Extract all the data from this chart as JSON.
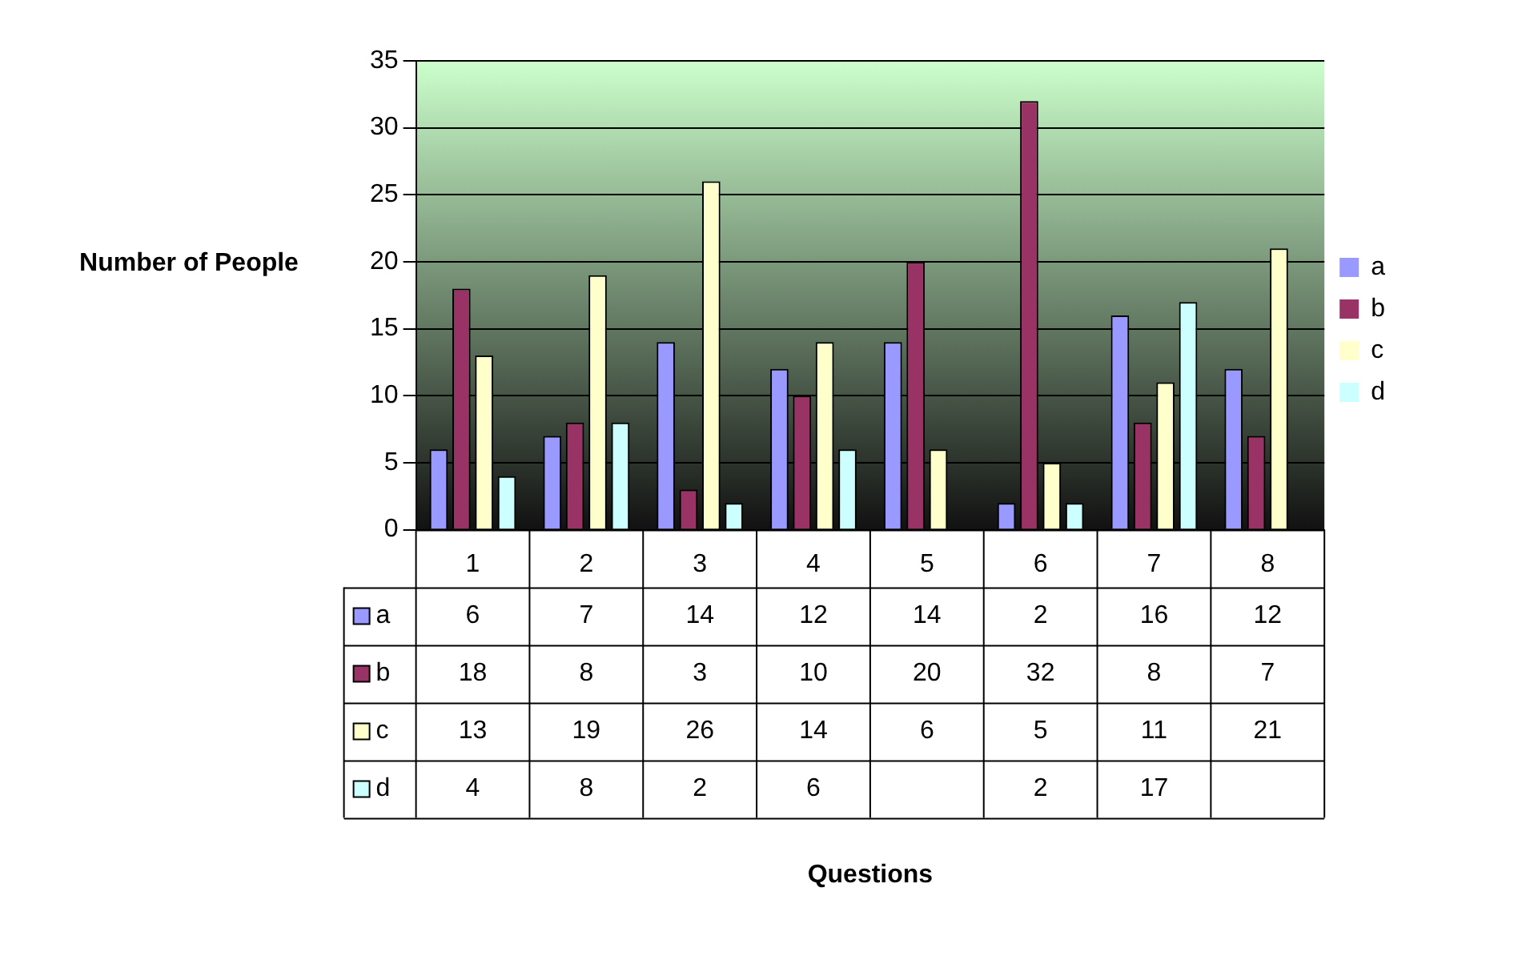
{
  "chart_data": {
    "type": "bar",
    "annotations": [
      "Questions"
    ],
    "ylabel": "Number of People",
    "categories": [
      "1",
      "2",
      "3",
      "4",
      "5",
      "6",
      "7",
      "8"
    ],
    "series": [
      {
        "name": "a",
        "color": "#9999ff",
        "values": [
          6,
          7,
          14,
          12,
          14,
          2,
          16,
          12
        ]
      },
      {
        "name": "b",
        "color": "#993366",
        "values": [
          18,
          8,
          3,
          10,
          20,
          32,
          8,
          7
        ]
      },
      {
        "name": "c",
        "color": "#ffffcc",
        "values": [
          13,
          19,
          26,
          14,
          6,
          5,
          11,
          21
        ]
      },
      {
        "name": "d",
        "color": "#ccffff",
        "values": [
          4,
          8,
          2,
          6,
          null,
          2,
          17,
          null
        ]
      }
    ],
    "ylim": [
      0,
      35
    ],
    "yticks": [
      0,
      5,
      10,
      15,
      20,
      25,
      30,
      35
    ],
    "grid": "y",
    "legend": "right",
    "data_labels": true
  }
}
